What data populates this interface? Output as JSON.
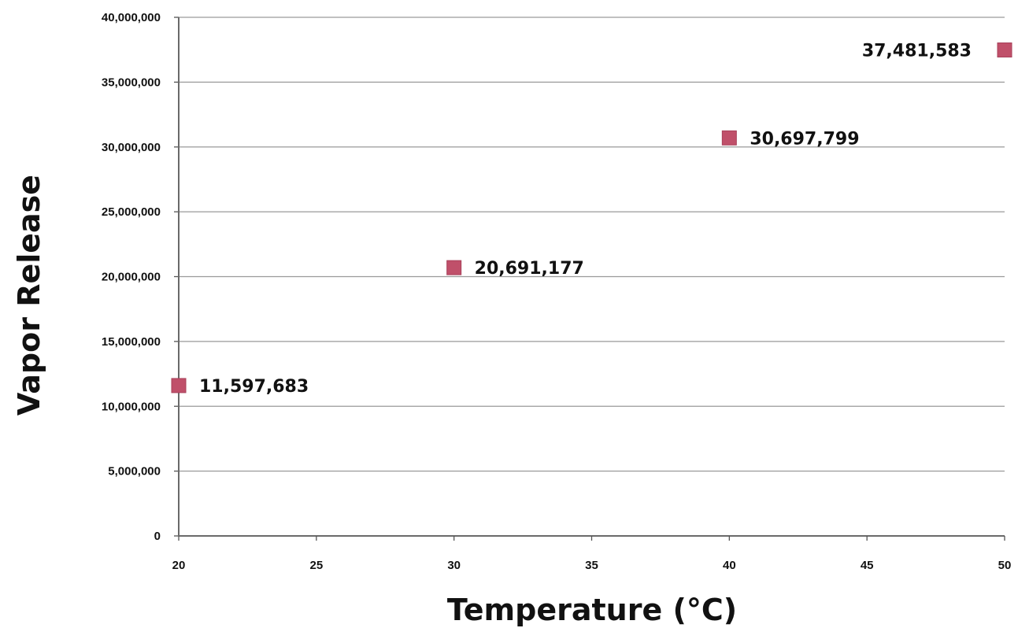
{
  "chart_data": {
    "type": "scatter",
    "title": "",
    "xlabel": "Temperature (°C)",
    "ylabel": "Vapor Release",
    "xlim": [
      20,
      50
    ],
    "ylim": [
      0,
      40000000
    ],
    "x_ticks": [
      "20",
      "25",
      "30",
      "35",
      "40",
      "45",
      "50"
    ],
    "y_ticks": [
      "0",
      "5,000,000",
      "10,000,000",
      "15,000,000",
      "20,000,000",
      "25,000,000",
      "30,000,000",
      "35,000,000",
      "40,000,000"
    ],
    "grid": "horizontal",
    "legend": "none",
    "marker": "square",
    "series": [
      {
        "color": "#c0506a",
        "points": [
          {
            "x": 20,
            "y": 11597683,
            "label": "11,597,683"
          },
          {
            "x": 30,
            "y": 20691177,
            "label": "20,691,177"
          },
          {
            "x": 40,
            "y": 30697799,
            "label": "30,697,799"
          },
          {
            "x": 50,
            "y": 37481583,
            "label": "37,481,583"
          }
        ]
      }
    ]
  }
}
